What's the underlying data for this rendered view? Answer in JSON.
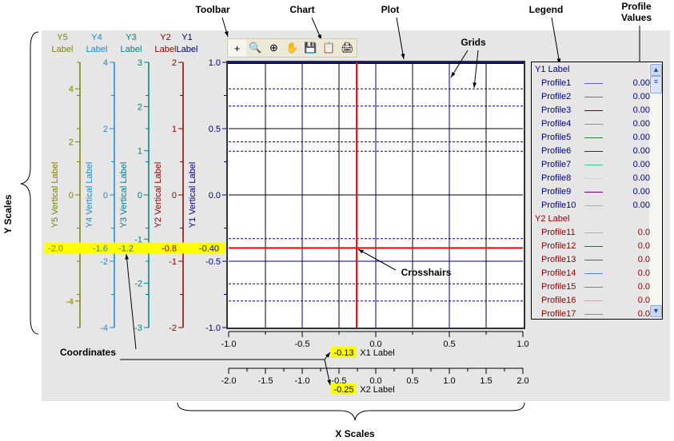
{
  "annotations": {
    "toolbar": "Toolbar",
    "chart": "Chart",
    "plot": "Plot",
    "legend": "Legend",
    "profile_values_1": "Profile",
    "profile_values_2": "Values",
    "grids": "Grids",
    "crosshairs": "Crosshairs",
    "coordinates": "Coordinates",
    "y_scales": "Y Scales",
    "x_scales": "X Scales"
  },
  "toolbar": [
    {
      "icon": "crosshair-icon",
      "glyph": "+"
    },
    {
      "icon": "zoom-in-out-icon",
      "glyph": "🔍"
    },
    {
      "icon": "zoom-box-icon",
      "glyph": "⊕"
    },
    {
      "icon": "pan-hand-icon",
      "glyph": "✋"
    },
    {
      "icon": "save-icon",
      "glyph": "💾"
    },
    {
      "icon": "copy-icon",
      "glyph": "📋"
    },
    {
      "icon": "print-icon",
      "glyph": "🖨"
    }
  ],
  "y_axes": [
    {
      "id": "y5",
      "title1": "Y5",
      "title2": "Label",
      "vertical_label": "Y5 Vertical Label",
      "color": "#808000",
      "range": [
        -5,
        5
      ],
      "ticks": [
        "4",
        "2",
        "0",
        "-2",
        "-4"
      ],
      "tick_values": [
        4,
        2,
        0,
        -2,
        -4
      ],
      "coordinate": "-2.0"
    },
    {
      "id": "y4",
      "title1": "Y4",
      "title2": "Label",
      "vertical_label": "Y4 Vertical Label",
      "color": "#1a8ccc",
      "range": [
        -4,
        4
      ],
      "ticks": [
        "4",
        "2",
        "0",
        "-2",
        "-4"
      ],
      "tick_values": [
        4,
        2,
        0,
        -2,
        -4
      ],
      "coordinate": "-1.6"
    },
    {
      "id": "y3",
      "title1": "Y3",
      "title2": "Label",
      "vertical_label": "Y3 Vertical Label",
      "color": "#008080",
      "range": [
        -3,
        3
      ],
      "ticks": [
        "3",
        "2",
        "1",
        "0",
        "-1",
        "-2",
        "-3"
      ],
      "tick_values": [
        3,
        2,
        1,
        0,
        -1,
        -2,
        -3
      ],
      "coordinate": "-1.2"
    },
    {
      "id": "y2",
      "title1": "Y2",
      "title2": "Label",
      "vertical_label": "Y2 Vertical Label",
      "color": "#8b0000",
      "range": [
        -2,
        2
      ],
      "ticks": [
        "2",
        "1",
        "0",
        "-1",
        "-2"
      ],
      "tick_values": [
        2,
        1,
        0,
        -1,
        -2
      ],
      "coordinate": "-0.8"
    },
    {
      "id": "y1",
      "title1": "Y1",
      "title2": "Label",
      "vertical_label": "Y1 Vertical Label",
      "color": "#000080",
      "range": [
        -1,
        1
      ],
      "ticks": [
        "1.0",
        "0.5",
        "0.0",
        "-0.5",
        "-1.0"
      ],
      "tick_values": [
        1,
        0.5,
        0,
        -0.5,
        -1
      ],
      "coordinate": "-0.40"
    }
  ],
  "x_axes": [
    {
      "id": "x1",
      "label": "X1 Label",
      "range": [
        -1,
        1
      ],
      "ticks": [
        "-1.0",
        "-0.5",
        "0.0",
        "0.5",
        "1.0"
      ],
      "tick_values": [
        -1,
        -0.5,
        0,
        0.5,
        1
      ],
      "coordinate": "-0.13"
    },
    {
      "id": "x2",
      "label": "X2 Label",
      "range": [
        -2,
        2
      ],
      "ticks": [
        "-2.0",
        "-1.5",
        "-1.0",
        "-0.5",
        "0.0",
        "0.5",
        "1.0",
        "1.5",
        "2.0"
      ],
      "tick_values": [
        -2,
        -1.5,
        -1,
        -0.5,
        0,
        0.5,
        1,
        1.5,
        2
      ],
      "coordinate": "-0.25"
    }
  ],
  "crosshair": {
    "x": -0.13,
    "y": -0.4,
    "color": "#ff0000"
  },
  "legend": {
    "groups": [
      {
        "title": "Y1 Label",
        "color": "#000080",
        "items": [
          {
            "name": "Profile1",
            "color": "#6a5acd",
            "value": "0.00"
          },
          {
            "name": "Profile2",
            "color": "#cc33cc",
            "value": "0.00"
          },
          {
            "name": "Profile3",
            "color": "#3a1a1a",
            "value": "0.00"
          },
          {
            "name": "Profile4",
            "color": "#33cc33",
            "value": "0.00"
          },
          {
            "name": "Profile5",
            "color": "#3a7a3a",
            "value": "0.00"
          },
          {
            "name": "Profile6",
            "color": "#660099",
            "value": "0.00"
          },
          {
            "name": "Profile7",
            "color": "#33cc99",
            "value": "0.00"
          },
          {
            "name": "Profile8",
            "color": "#ccee33",
            "value": "0.00"
          },
          {
            "name": "Profile9",
            "color": "#660066",
            "value": "0.00"
          },
          {
            "name": "Profile10",
            "color": "#66ee11",
            "value": "0.00"
          }
        ]
      },
      {
        "title": "Y2 Label",
        "color": "#8b0000",
        "items": [
          {
            "name": "Profile11",
            "color": "#f0a050",
            "value": "0.0"
          },
          {
            "name": "Profile12",
            "color": "#336644",
            "value": "0.0"
          },
          {
            "name": "Profile13",
            "color": "#ff2200",
            "value": "0.0"
          },
          {
            "name": "Profile14",
            "color": "#5588dd",
            "value": "0.0"
          },
          {
            "name": "Profile15",
            "color": "#8866ee",
            "value": "0.0"
          },
          {
            "name": "Profile16",
            "color": "#ccaabb",
            "value": "0.0"
          },
          {
            "name": "Profile17",
            "color": "#ff5577",
            "value": "0.0"
          }
        ]
      }
    ]
  }
}
